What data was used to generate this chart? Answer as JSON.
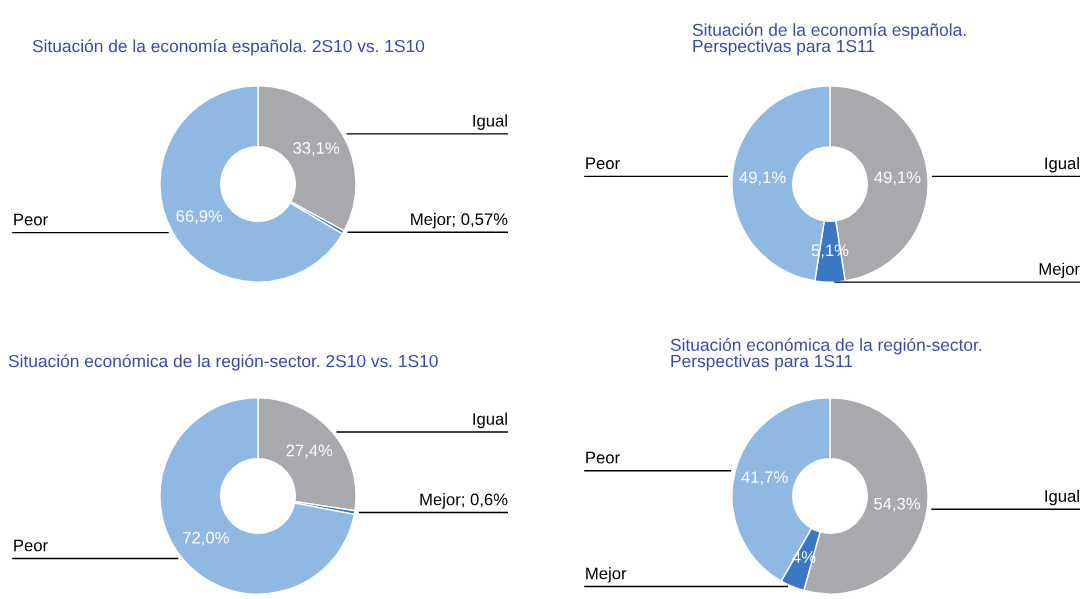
{
  "chart_data": [
    {
      "type": "donut",
      "title": "Situación de la economía española. 2S10 vs. 1S10",
      "categories": [
        "Igual",
        "Mejor; 0,57%",
        "Peor"
      ],
      "values": [
        33.1,
        0.57,
        66.9
      ],
      "colors": [
        "#a7a9ac",
        "#3a78c3",
        "#8fb9e3"
      ],
      "value_labels": [
        "33,1%",
        null,
        "66,9%"
      ]
    },
    {
      "type": "donut",
      "title": "Situación de la economía española.\nPerspectivas para 1S11",
      "categories": [
        "Igual",
        "Mejor",
        "Peor"
      ],
      "values": [
        49.1,
        5.1,
        49.1
      ],
      "colors": [
        "#a7a9ac",
        "#3a78c3",
        "#8fb9e3"
      ],
      "value_labels": [
        "49,1%",
        "5,1%",
        "49,1%"
      ]
    },
    {
      "type": "donut",
      "title": "Situación económica de la región-sector. 2S10 vs. 1S10",
      "categories": [
        "Igual",
        "Mejor; 0,6%",
        "Peor"
      ],
      "values": [
        27.4,
        0.6,
        72.0
      ],
      "colors": [
        "#a7a9ac",
        "#3a78c3",
        "#8fb9e3"
      ],
      "value_labels": [
        "27,4%",
        null,
        "72,0%"
      ]
    },
    {
      "type": "donut",
      "title": "Situación económica de la región-sector.\nPerspectivas para 1S11",
      "categories": [
        "Igual",
        "Mejor",
        "Peor"
      ],
      "values": [
        54.3,
        4,
        41.7
      ],
      "colors": [
        "#a7a9ac",
        "#3a78c3",
        "#8fb9e3"
      ],
      "value_labels": [
        "54,3%",
        "4%",
        "41,7%"
      ]
    }
  ]
}
